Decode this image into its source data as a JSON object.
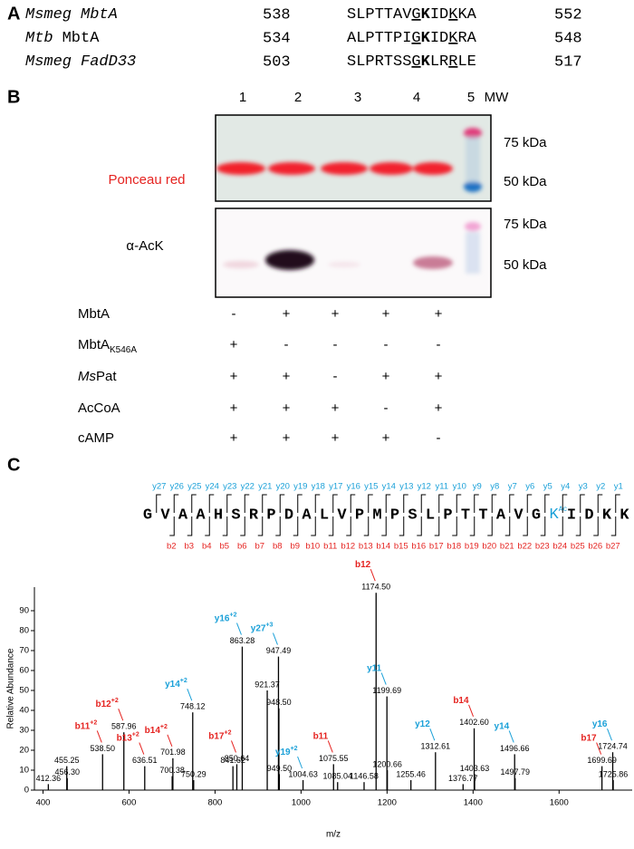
{
  "panel_a": {
    "label": "A",
    "rows": [
      {
        "organism": "Msmeg",
        "protein": "MbtA",
        "start": 538,
        "sequence": [
          "SLPTTAV",
          "G",
          "K",
          "ID",
          "K",
          "KA"
        ],
        "end": 552
      },
      {
        "organism": "Mtb",
        "protein": "MbtA",
        "start": 534,
        "sequence": [
          "ALPTTPI",
          "G",
          "K",
          "ID",
          "K",
          "RA"
        ],
        "end": 548
      },
      {
        "organism": "Msmeg",
        "protein": "FadD33",
        "start": 503,
        "sequence": [
          "SLPRTSS",
          "G",
          "K",
          "LR",
          "R",
          "LE"
        ],
        "end": 517
      }
    ]
  },
  "panel_b": {
    "label": "B",
    "lanes": [
      "1",
      "2",
      "3",
      "4",
      "5",
      "MW"
    ],
    "ponceau_label": "Ponceau red",
    "ack_label": "α-AcK",
    "markers": [
      "75 kDa",
      "50 kDa",
      "75 kDa",
      "50 kDa"
    ],
    "conditions": [
      {
        "label": [
          "MbtA"
        ],
        "values": [
          "-",
          "+",
          "+",
          "+",
          "+"
        ]
      },
      {
        "label": [
          "MbtA",
          "K546A"
        ],
        "values": [
          "+",
          "-",
          "-",
          "-",
          "-"
        ]
      },
      {
        "label": [
          "Ms",
          "Pat"
        ],
        "values": [
          "+",
          "+",
          "-",
          "+",
          "+"
        ]
      },
      {
        "label": [
          "AcCoA"
        ],
        "values": [
          "+",
          "+",
          "+",
          "-",
          "+"
        ]
      },
      {
        "label": [
          "cAMP"
        ],
        "values": [
          "+",
          "+",
          "+",
          "+",
          "-"
        ]
      }
    ]
  },
  "panel_c": {
    "label": "C",
    "peptide": {
      "residues": [
        "G",
        "V",
        "A",
        "A",
        "H",
        "S",
        "R",
        "P",
        "D",
        "A",
        "L",
        "V",
        "P",
        "M",
        "P",
        "S",
        "L",
        "P",
        "T",
        "T",
        "A",
        "V",
        "G",
        {
          "letter": "K",
          "mod": "Ac"
        },
        "I",
        "D",
        "K",
        "K"
      ],
      "y_ions": [
        "y27",
        "y26",
        "y25",
        "y24",
        "y23",
        "y22",
        "y21",
        "y20",
        "y19",
        "y18",
        "y17",
        "y16",
        "y15",
        "y14",
        "y13",
        "y12",
        "y11",
        "y10",
        "y9",
        "y8",
        "y7",
        "y6",
        "y5",
        "y4",
        "y3",
        "y2",
        "y1"
      ],
      "b_ions": [
        "b2",
        "b3",
        "b4",
        "b5",
        "b6",
        "b7",
        "b8",
        "b9",
        "b10",
        "b11",
        "b12",
        "b13",
        "b14",
        "b15",
        "b16",
        "b17",
        "b18",
        "b19",
        "b20",
        "b21",
        "b22",
        "b23",
        "b24",
        "b25",
        "b26",
        "b27"
      ]
    }
  },
  "chart_data": {
    "type": "bar",
    "x_label": "m/z",
    "y_label": "Relative Abundance",
    "color": "#000000",
    "ion_colors": {
      "b": "#e52320",
      "y": "#1aa0d8"
    },
    "x": [
      412.36,
      455.25,
      456.3,
      538.5,
      587.96,
      636.51,
      700.38,
      701.98,
      748.12,
      750.29,
      841.62,
      850.64,
      863.28,
      921.37,
      947.49,
      948.5,
      949.5,
      1004.63,
      1075.55,
      1085.04,
      1146.58,
      1174.5,
      1199.69,
      1200.66,
      1255.46,
      1312.61,
      1376.77,
      1402.6,
      1403.63,
      1496.66,
      1497.79,
      1699.69,
      1724.74,
      1725.86
    ],
    "x_labels": [
      "412.36",
      "455.25",
      "456.30",
      "538.50",
      "587.96",
      "636.51",
      "700.38",
      "701.98",
      "748.12",
      "750.29",
      "841.62",
      "850.64",
      "863.28",
      "921.37",
      "947.49",
      "948.50",
      "949.50",
      "1004.63",
      "1075.55",
      "1085.04",
      "1146.58",
      "1174.50",
      "1199.69",
      "1200.66",
      "1255.46",
      "1312.61",
      "1376.77",
      "1402.60",
      "1403.63",
      "1496.66",
      "1497.79",
      "1699.69",
      "1724.74",
      "1725.86"
    ],
    "values": [
      3,
      12,
      6,
      18,
      29,
      12,
      7,
      16,
      39,
      5,
      12,
      13,
      72,
      50,
      67,
      41,
      8,
      5,
      13,
      4,
      4,
      99,
      47,
      10,
      5,
      19,
      3,
      31,
      8,
      18,
      6,
      12,
      19,
      5
    ],
    "ions": [
      null,
      null,
      null,
      {
        "name": "b11",
        "charge": "+2"
      },
      {
        "name": "b12",
        "charge": "+2"
      },
      {
        "name": "b13",
        "charge": "+2"
      },
      null,
      {
        "name": "b14",
        "charge": "+2"
      },
      {
        "name": "y14",
        "charge": "+2"
      },
      null,
      null,
      {
        "name": "b17",
        "charge": "+2"
      },
      {
        "name": "y16",
        "charge": "+2"
      },
      null,
      {
        "name": "y27",
        "charge": "+3"
      },
      null,
      null,
      {
        "name": "y19",
        "charge": "+2"
      },
      {
        "name": "b11"
      },
      null,
      null,
      {
        "name": "b12"
      },
      {
        "name": "y11"
      },
      null,
      null,
      {
        "name": "y12"
      },
      null,
      {
        "name": "b14"
      },
      null,
      {
        "name": "y14"
      },
      null,
      {
        "name": "b17"
      },
      {
        "name": "y16"
      },
      null
    ],
    "xlim": [
      380,
      1770
    ],
    "xticks": [
      400,
      600,
      800,
      1000,
      1200,
      1400,
      1600
    ],
    "ylim": [
      0,
      100
    ],
    "yticks": [
      0,
      10,
      20,
      30,
      40,
      50,
      60,
      70,
      80,
      90
    ]
  }
}
